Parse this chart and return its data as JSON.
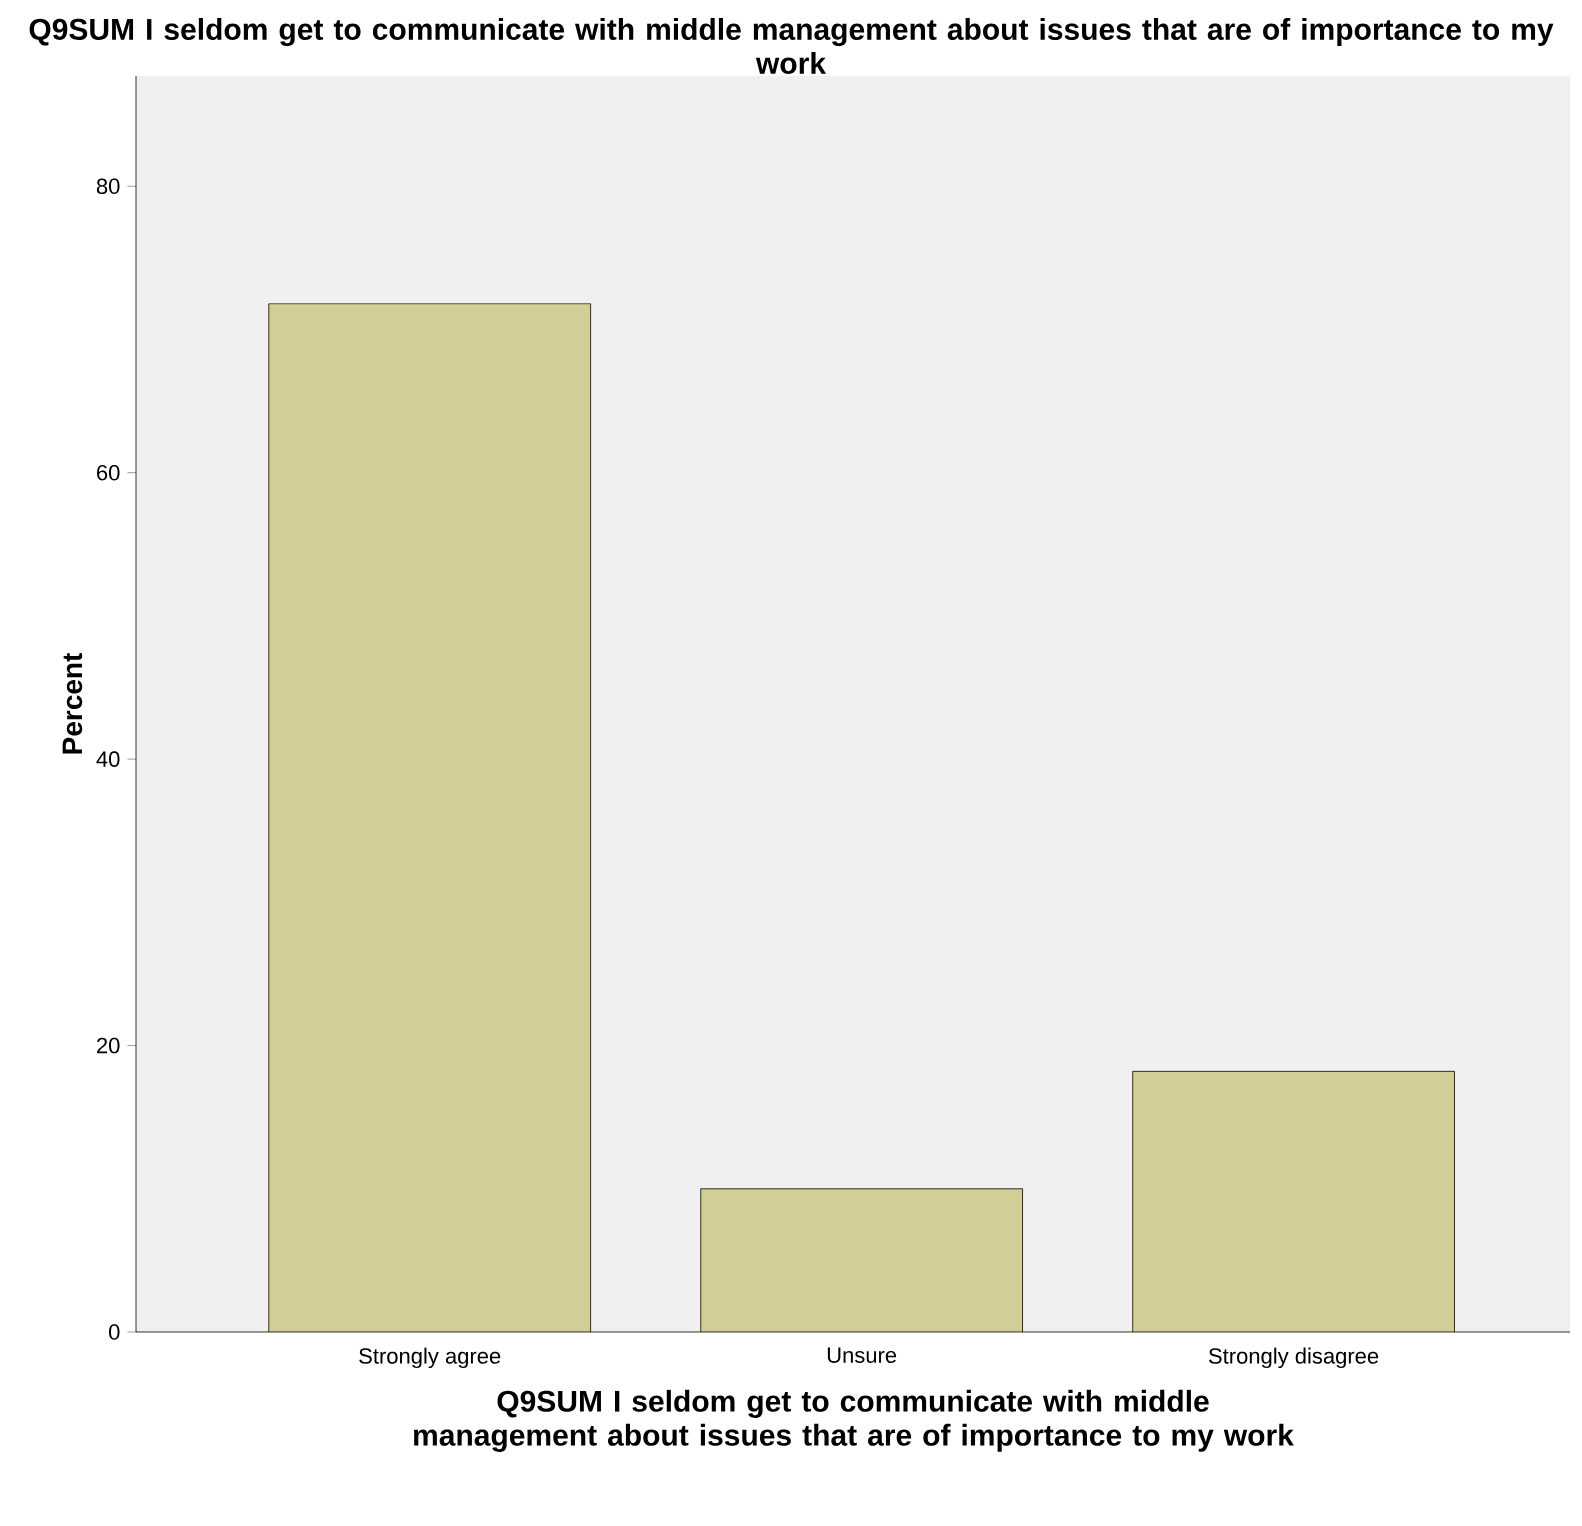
{
  "chart_data": {
    "type": "bar",
    "title": "Q9SUM I seldom get to communicate with middle management about issues that are of importance to my work",
    "xlabel": "Q9SUM I seldom get to communicate with middle management about issues that are of importance to my work",
    "ylabel": "Percent",
    "categories": [
      "Strongly agree",
      "Unsure",
      "Strongly disagree"
    ],
    "values": [
      71.8,
      10.0,
      18.2
    ],
    "color": "#d3ce97",
    "ylim": [
      0,
      87.7
    ],
    "yticks": [
      0,
      20,
      40,
      60,
      80
    ],
    "grid": false
  }
}
